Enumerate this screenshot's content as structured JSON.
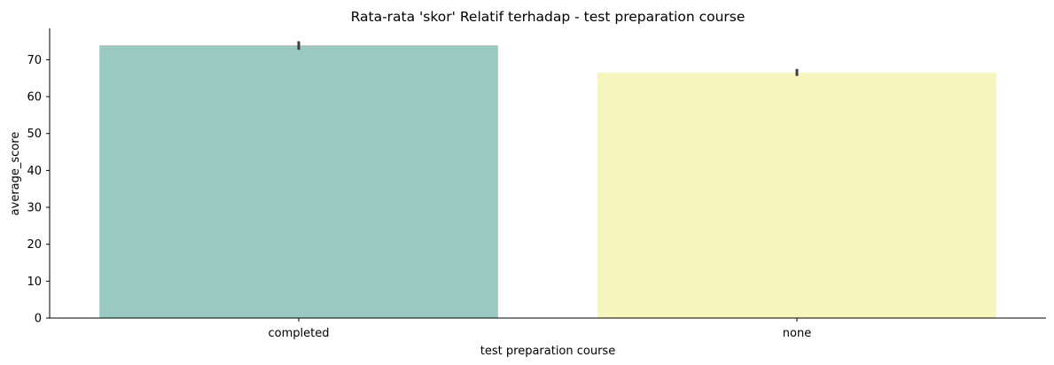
{
  "chart_data": {
    "type": "bar",
    "title": "Rata-rata 'skor' Relatif terhadap - test preparation course",
    "xlabel": "test preparation course",
    "ylabel": "average_score",
    "categories": [
      "completed",
      "none"
    ],
    "values": [
      73.9,
      66.5
    ],
    "error_bars": [
      {
        "low": 72.7,
        "high": 75.0
      },
      {
        "low": 65.6,
        "high": 67.5
      }
    ],
    "colors": [
      "#99c9c1",
      "#f6f5bd"
    ],
    "error_bar_color": "#3f3f3f",
    "ylim": [
      0,
      78.5
    ],
    "yticks": [
      0,
      10,
      20,
      30,
      40,
      50,
      60,
      70
    ],
    "ytick_labels": [
      "0",
      "10",
      "20",
      "30",
      "40",
      "50",
      "60",
      "70"
    ],
    "grid": false,
    "legend": "none"
  }
}
